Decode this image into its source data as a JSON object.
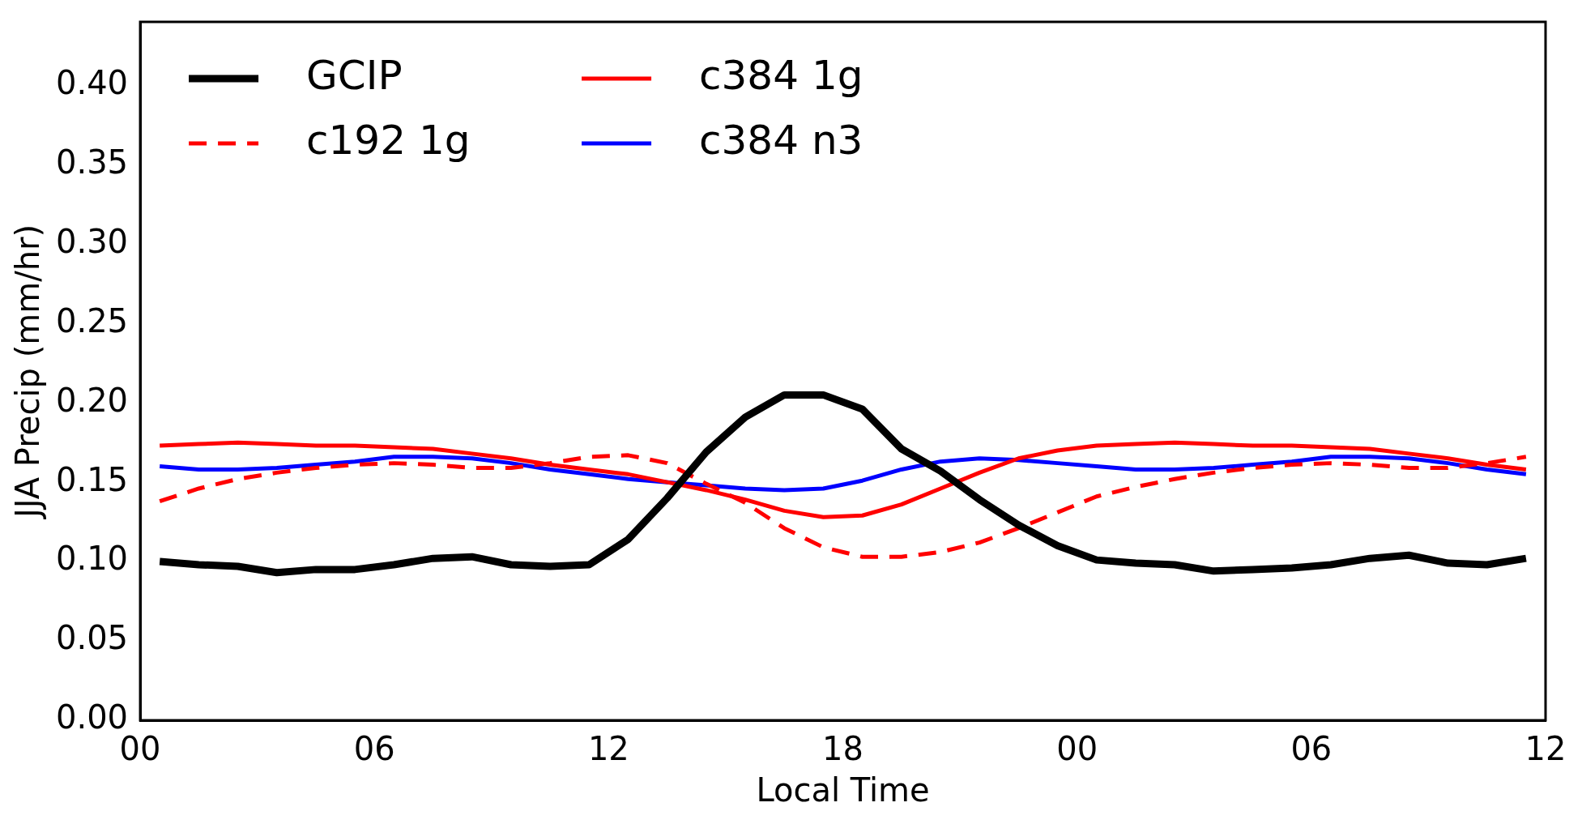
{
  "chart_data": {
    "type": "line",
    "xlabel": "Local Time",
    "ylabel": "JJA Precip (mm/hr)",
    "x": [
      0.5,
      1.5,
      2.5,
      3.5,
      4.5,
      5.5,
      6.5,
      7.5,
      8.5,
      9.5,
      10.5,
      11.5,
      12.5,
      13.5,
      14.5,
      15.5,
      16.5,
      17.5,
      18.5,
      19.5,
      20.5,
      21.5,
      22.5,
      23.5,
      24.5,
      25.5,
      26.5,
      27.5,
      28.5,
      29.5,
      30.5,
      31.5,
      32.5,
      33.5,
      34.5,
      35.5
    ],
    "series": [
      {
        "name": "GCIP",
        "color": "#000000",
        "line_style": "solid",
        "values": [
          0.1,
          0.098,
          0.097,
          0.093,
          0.095,
          0.095,
          0.098,
          0.102,
          0.103,
          0.098,
          0.097,
          0.098,
          0.114,
          0.14,
          0.169,
          0.191,
          0.205,
          0.205,
          0.196,
          0.171,
          0.157,
          0.139,
          0.123,
          0.11,
          0.101,
          0.099,
          0.098,
          0.094,
          0.095,
          0.096,
          0.098,
          0.102,
          0.104,
          0.099,
          0.098,
          0.102
        ]
      },
      {
        "name": "c192 1g",
        "color": "#ff0000",
        "line_style": "dashed",
        "values": [
          0.138,
          0.146,
          0.152,
          0.156,
          0.159,
          0.161,
          0.162,
          0.161,
          0.159,
          0.159,
          0.162,
          0.166,
          0.167,
          0.162,
          0.149,
          0.137,
          0.121,
          0.109,
          0.103,
          0.103,
          0.106,
          0.112,
          0.121,
          0.131,
          0.141,
          0.147,
          0.152,
          0.156,
          0.159,
          0.161,
          0.162,
          0.161,
          0.159,
          0.159,
          0.162,
          0.166
        ]
      },
      {
        "name": "c384 1g",
        "color": "#ff0000",
        "line_style": "solid",
        "values": [
          0.173,
          0.174,
          0.175,
          0.174,
          0.173,
          0.173,
          0.172,
          0.171,
          0.168,
          0.165,
          0.161,
          0.158,
          0.155,
          0.15,
          0.145,
          0.139,
          0.132,
          0.128,
          0.129,
          0.136,
          0.146,
          0.156,
          0.165,
          0.17,
          0.173,
          0.174,
          0.175,
          0.174,
          0.173,
          0.173,
          0.172,
          0.171,
          0.168,
          0.165,
          0.161,
          0.158
        ]
      },
      {
        "name": "c384 n3",
        "color": "#0000ff",
        "line_style": "solid",
        "values": [
          0.16,
          0.158,
          0.158,
          0.159,
          0.161,
          0.163,
          0.166,
          0.166,
          0.165,
          0.162,
          0.158,
          0.155,
          0.152,
          0.15,
          0.148,
          0.146,
          0.145,
          0.146,
          0.151,
          0.158,
          0.163,
          0.165,
          0.164,
          0.162,
          0.16,
          0.158,
          0.158,
          0.159,
          0.161,
          0.163,
          0.166,
          0.166,
          0.165,
          0.162,
          0.158,
          0.155
        ]
      }
    ],
    "xlim": [
      0,
      36
    ],
    "xticks": [
      {
        "value": 0,
        "label": "00"
      },
      {
        "value": 6,
        "label": "06"
      },
      {
        "value": 12,
        "label": "12"
      },
      {
        "value": 18,
        "label": "18"
      },
      {
        "value": 24,
        "label": "00"
      },
      {
        "value": 30,
        "label": "06"
      },
      {
        "value": 36,
        "label": "12"
      }
    ],
    "ylim": [
      0,
      0.44
    ],
    "yticks": [
      {
        "value": 0,
        "label": "0.00"
      },
      {
        "value": 0.05,
        "label": "0.05"
      },
      {
        "value": 0.1,
        "label": "0.10"
      },
      {
        "value": 0.15,
        "label": "0.15"
      },
      {
        "value": 0.2,
        "label": "0.20"
      },
      {
        "value": 0.25,
        "label": "0.25"
      },
      {
        "value": 0.3,
        "label": "0.30"
      },
      {
        "value": 0.35,
        "label": "0.35"
      },
      {
        "value": 0.4,
        "label": "0.40"
      }
    ],
    "grid": false,
    "legend": "top left",
    "marker": "none"
  }
}
